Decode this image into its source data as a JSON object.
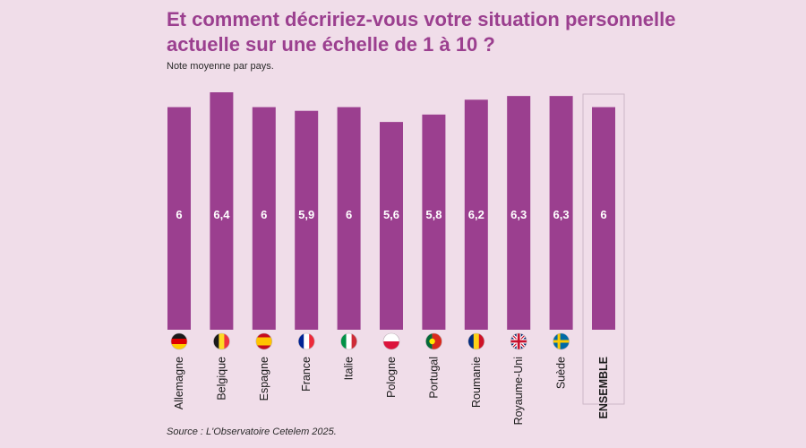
{
  "header": {
    "title": "Et comment décririez-vous votre situation personnelle actuelle sur une échelle de 1 à 10 ?",
    "subtitle": "Note moyenne par pays."
  },
  "footer": {
    "source": "Source : L'Observatoire Cetelem 2025."
  },
  "colors": {
    "bar": "#9b3f8f",
    "background": "#f0dde9",
    "title": "#9b3f8f",
    "highlight_border": "#cdb8c6"
  },
  "chart_data": {
    "type": "bar",
    "title": "Et comment décririez-vous votre situation personnelle actuelle sur une échelle de 1 à 10 ?",
    "subtitle": "Note moyenne par pays.",
    "xlabel": "",
    "ylabel": "",
    "ylim": [
      0,
      6.4
    ],
    "categories": [
      "Allemagne",
      "Belgique",
      "Espagne",
      "France",
      "Italie",
      "Pologne",
      "Portugal",
      "Roumanie",
      "Royaume-Uni",
      "Suède",
      "ENSEMBLE"
    ],
    "values": [
      6,
      6.4,
      6,
      5.9,
      6,
      5.6,
      5.8,
      6.2,
      6.3,
      6.3,
      6
    ],
    "value_labels": [
      "6",
      "6,4",
      "6",
      "5,9",
      "6",
      "5,6",
      "5,8",
      "6,2",
      "6,3",
      "6,3",
      "6"
    ],
    "flags": [
      "germany-flag",
      "belgium-flag",
      "spain-flag",
      "france-flag",
      "italy-flag",
      "poland-flag",
      "portugal-flag",
      "romania-flag",
      "uk-flag",
      "sweden-flag",
      ""
    ],
    "highlighted_category": "ENSEMBLE",
    "grid": false
  }
}
